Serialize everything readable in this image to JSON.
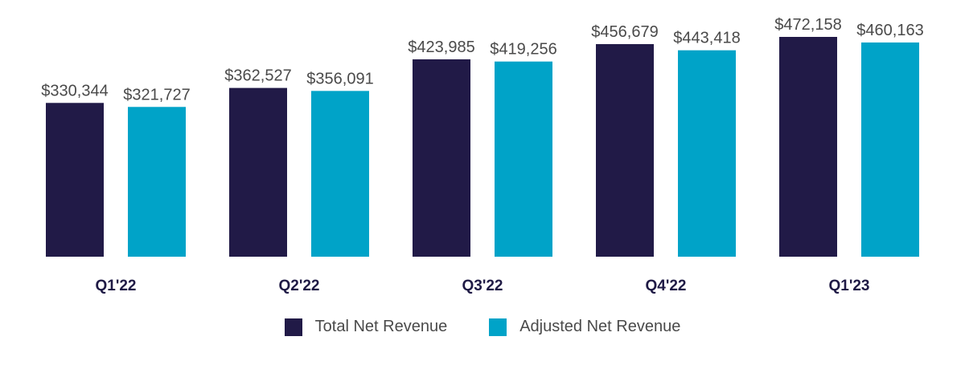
{
  "chart_data": {
    "type": "bar",
    "title": "",
    "xlabel": "",
    "ylabel": "",
    "ylim": [
      0,
      472158
    ],
    "grid": false,
    "legend_position": "bottom-center",
    "categories": [
      "Q1'22",
      "Q2'22",
      "Q3'22",
      "Q4'22",
      "Q1'23"
    ],
    "series": [
      {
        "name": "Total Net Revenue",
        "color": "#211a47",
        "values": [
          330344,
          362527,
          423985,
          456679,
          472158
        ],
        "labels": [
          "$330,344",
          "$362,527",
          "$423,985",
          "$456,679",
          "$472,158"
        ]
      },
      {
        "name": "Adjusted Net Revenue",
        "color": "#00a3c8",
        "values": [
          321727,
          356091,
          419256,
          443418,
          460163
        ],
        "labels": [
          "$321,727",
          "$356,091",
          "$419,256",
          "$443,418",
          "$460,163"
        ]
      }
    ]
  }
}
